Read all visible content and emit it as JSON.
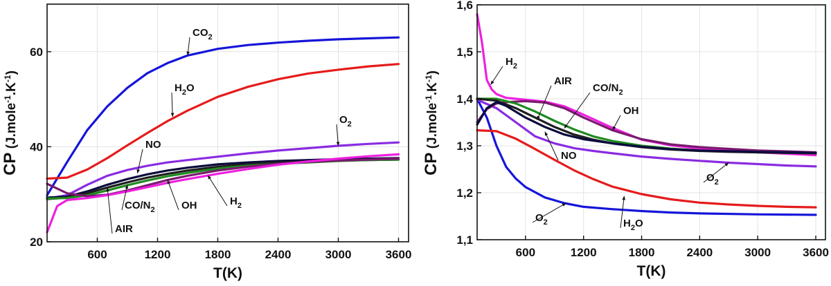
{
  "chart_data": [
    {
      "type": "line",
      "xlabel": "T(K)",
      "ylabel": "CP (J.mole-1.K-1)",
      "ylabel_parts": {
        "main": "CP",
        "open": " (J.mole",
        "sup1": "-1",
        "mid": ".K",
        "sup2": "-1",
        "close": ")"
      },
      "xlim": [
        100,
        3700
      ],
      "ylim": [
        20,
        70
      ],
      "xticks": [
        600,
        1200,
        1800,
        2400,
        3000,
        3600
      ],
      "yticks": [
        20,
        40,
        60
      ],
      "series": [
        {
          "name": "CO2",
          "color": "#1515d9",
          "x": [
            100,
            300,
            500,
            700,
            900,
            1100,
            1300,
            1500,
            1800,
            2100,
            2400,
            2700,
            3000,
            3300,
            3600
          ],
          "y": [
            29.8,
            36.8,
            43.5,
            48.5,
            52.4,
            55.5,
            57.6,
            59.2,
            60.6,
            61.4,
            61.9,
            62.3,
            62.6,
            62.8,
            63.0
          ]
        },
        {
          "name": "H2O",
          "color": "#e51b1b",
          "x": [
            100,
            300,
            500,
            700,
            900,
            1100,
            1300,
            1500,
            1800,
            2100,
            2400,
            2700,
            3000,
            3300,
            3600
          ],
          "y": [
            33.3,
            33.5,
            35.2,
            37.6,
            40.3,
            42.9,
            45.4,
            47.6,
            50.5,
            52.6,
            54.2,
            55.4,
            56.2,
            56.9,
            57.4
          ]
        },
        {
          "name": "O2",
          "color": "#8a2be2",
          "x": [
            100,
            300,
            500,
            700,
            900,
            1100,
            1300,
            1500,
            1800,
            2100,
            2400,
            2700,
            3000,
            3300,
            3600
          ],
          "y": [
            29.1,
            29.8,
            32.0,
            33.9,
            35.1,
            36.0,
            36.7,
            37.2,
            37.9,
            38.6,
            39.2,
            39.7,
            40.2,
            40.6,
            40.9
          ]
        },
        {
          "name": "NO",
          "color": "#0b0b3d",
          "x": [
            100,
            300,
            500,
            700,
            900,
            1100,
            1300,
            1500,
            1800,
            2100,
            2400,
            2700,
            3000,
            3300,
            3600
          ],
          "y": [
            29.3,
            29.5,
            30.6,
            32.0,
            33.2,
            34.2,
            35.0,
            35.6,
            36.3,
            36.7,
            37.0,
            37.2,
            37.4,
            37.5,
            37.6
          ]
        },
        {
          "name": "AIR",
          "color": "#1f1f1f",
          "x": [
            100,
            300,
            500,
            700,
            900,
            1100,
            1300,
            1500,
            1800,
            2100,
            2400,
            2700,
            3000,
            3300,
            3600
          ],
          "y": [
            29.0,
            29.3,
            30.2,
            31.4,
            32.5,
            33.5,
            34.3,
            35.0,
            35.8,
            36.3,
            36.7,
            36.9,
            37.1,
            37.2,
            37.3
          ]
        },
        {
          "name": "CO/N2",
          "color": "#1f8a1f",
          "x": [
            100,
            300,
            500,
            700,
            900,
            1100,
            1300,
            1500,
            1800,
            2100,
            2400,
            2700,
            3000,
            3300,
            3600
          ],
          "y": [
            29.1,
            29.2,
            29.8,
            30.8,
            31.9,
            32.9,
            33.8,
            34.5,
            35.4,
            36.0,
            36.4,
            36.7,
            37.0,
            37.2,
            37.3
          ]
        },
        {
          "name": "OH",
          "color": "#7a1a6e",
          "x": [
            100,
            300,
            500,
            700,
            900,
            1100,
            1300,
            1500,
            1800,
            2100,
            2400,
            2700,
            3000,
            3300,
            3600
          ],
          "y": [
            32.2,
            30.2,
            29.6,
            29.9,
            30.8,
            31.9,
            33.0,
            33.9,
            35.0,
            35.8,
            36.4,
            36.8,
            37.1,
            37.3,
            37.5
          ]
        },
        {
          "name": "H2",
          "color": "#ee1fe0",
          "x": [
            100,
            200,
            300,
            400,
            500,
            700,
            900,
            1100,
            1300,
            1500,
            1800,
            2100,
            2400,
            2700,
            3000,
            3300,
            3600
          ],
          "y": [
            22.0,
            27.5,
            28.8,
            29.0,
            29.2,
            29.8,
            30.6,
            31.5,
            32.4,
            33.2,
            34.3,
            35.3,
            36.2,
            36.9,
            37.5,
            38.0,
            38.4
          ]
        }
      ],
      "annotations": [
        {
          "base": "CO",
          "sub": "2"
        },
        {
          "base": "H",
          "sub": "2",
          "tail": "O"
        },
        {
          "base": "O",
          "sub": "2"
        },
        {
          "base": "NO"
        },
        {
          "base": "CO/N",
          "sub": "2"
        },
        {
          "base": "OH"
        },
        {
          "base": "H",
          "sub": "2"
        },
        {
          "base": "AIR"
        }
      ]
    },
    {
      "type": "line",
      "xlabel": "T(K)",
      "ylabel": "CP (J.mole-1.K-1)",
      "ylabel_parts": {
        "main": "CP",
        "open": " (J.mole",
        "sup1": "-1",
        "mid": ".K",
        "sup2": "-1",
        "close": ")"
      },
      "xlim": [
        100,
        3700
      ],
      "ylim": [
        1.1,
        1.6
      ],
      "xticks": [
        600,
        1200,
        1800,
        2400,
        3000,
        3600
      ],
      "yticks": [
        1.1,
        1.2,
        1.3,
        1.4,
        1.5,
        1.6
      ],
      "ytick_labels": [
        "1,1",
        "1,2",
        "1,3",
        "1,4",
        "1,5",
        "1,6"
      ],
      "series": [
        {
          "name": "O2",
          "color": "#1515d9",
          "x": [
            100,
            200,
            300,
            400,
            500,
            600,
            800,
            1000,
            1200,
            1500,
            1800,
            2100,
            2400,
            3000,
            3600
          ],
          "y": [
            1.4,
            1.36,
            1.3,
            1.255,
            1.23,
            1.212,
            1.19,
            1.178,
            1.17,
            1.165,
            1.161,
            1.158,
            1.156,
            1.154,
            1.153
          ]
        },
        {
          "name": "H2O",
          "color": "#e51b1b",
          "x": [
            100,
            300,
            500,
            700,
            900,
            1100,
            1300,
            1500,
            1800,
            2100,
            2400,
            2700,
            3000,
            3300,
            3600
          ],
          "y": [
            1.333,
            1.331,
            1.315,
            1.293,
            1.27,
            1.248,
            1.229,
            1.213,
            1.197,
            1.186,
            1.179,
            1.175,
            1.172,
            1.17,
            1.169
          ]
        },
        {
          "name": "O2",
          "color": "#8a2be2",
          "x": [
            100,
            300,
            500,
            700,
            900,
            1100,
            1300,
            1500,
            1800,
            2100,
            2400,
            2700,
            3000,
            3300,
            3600
          ],
          "y": [
            1.398,
            1.38,
            1.35,
            1.32,
            1.305,
            1.295,
            1.289,
            1.284,
            1.277,
            1.272,
            1.268,
            1.264,
            1.261,
            1.258,
            1.256
          ]
        },
        {
          "name": "H2",
          "color": "#ee1fe0",
          "x": [
            100,
            150,
            200,
            250,
            300,
            400,
            600,
            800,
            1000,
            1200,
            1500,
            1800,
            2100,
            2400,
            3000,
            3600
          ],
          "y": [
            1.58,
            1.52,
            1.44,
            1.42,
            1.41,
            1.402,
            1.398,
            1.394,
            1.384,
            1.366,
            1.338,
            1.313,
            1.301,
            1.294,
            1.286,
            1.28
          ]
        },
        {
          "name": "OH",
          "color": "#7a1a6e",
          "x": [
            100,
            200,
            300,
            400,
            600,
            800,
            1000,
            1200,
            1500,
            1800,
            2100,
            2400,
            3000,
            3600
          ],
          "y": [
            1.35,
            1.378,
            1.39,
            1.393,
            1.395,
            1.392,
            1.38,
            1.36,
            1.333,
            1.314,
            1.303,
            1.297,
            1.29,
            1.286
          ]
        },
        {
          "name": "CO/N2",
          "color": "#1f8a1f",
          "x": [
            100,
            300,
            500,
            700,
            900,
            1100,
            1300,
            1500,
            1800,
            2100,
            2400,
            2700,
            3000,
            3300,
            3600
          ],
          "y": [
            1.4,
            1.4,
            1.39,
            1.373,
            1.353,
            1.335,
            1.32,
            1.31,
            1.3,
            1.294,
            1.29,
            1.288,
            1.286,
            1.285,
            1.284
          ]
        },
        {
          "name": "AIR",
          "color": "#1f1f1f",
          "x": [
            100,
            300,
            500,
            700,
            900,
            1100,
            1300,
            1500,
            1800,
            2100,
            2400,
            2700,
            3000,
            3300,
            3600
          ],
          "y": [
            1.4,
            1.396,
            1.38,
            1.36,
            1.34,
            1.324,
            1.313,
            1.305,
            1.297,
            1.292,
            1.289,
            1.287,
            1.286,
            1.285,
            1.284
          ]
        },
        {
          "name": "NO",
          "color": "#0b0b3d",
          "x": [
            100,
            200,
            300,
            400,
            600,
            800,
            1000,
            1200,
            1500,
            1800,
            2100,
            2400,
            3000,
            3600
          ],
          "y": [
            1.345,
            1.38,
            1.393,
            1.385,
            1.36,
            1.34,
            1.324,
            1.314,
            1.305,
            1.298,
            1.293,
            1.29,
            1.287,
            1.285
          ]
        }
      ],
      "annotations": [
        {
          "base": "H",
          "sub": "2"
        },
        {
          "base": "AIR"
        },
        {
          "base": "CO/N",
          "sub": "2"
        },
        {
          "base": "OH"
        },
        {
          "base": "NO"
        },
        {
          "base": "O",
          "sub": "2"
        },
        {
          "base": "O",
          "sub": "2"
        },
        {
          "base": "H",
          "sub": "2",
          "tail": "O"
        }
      ]
    }
  ]
}
